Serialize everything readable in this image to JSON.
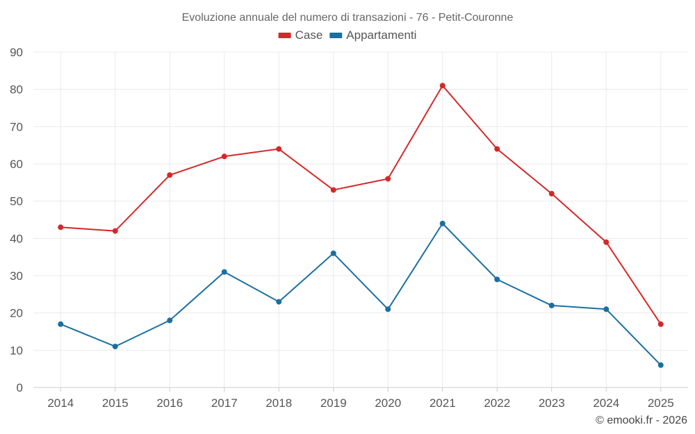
{
  "credit": "© emooki.fr - 2026",
  "colors": {
    "case": "#d62728",
    "appartamenti": "#1a6fa0"
  },
  "chart_data": {
    "type": "line",
    "title": "Evoluzione annuale del numero di transazioni - 76 - Petit-Couronne",
    "xlabel": "",
    "ylabel": "",
    "categories": [
      "2014",
      "2015",
      "2016",
      "2017",
      "2018",
      "2019",
      "2020",
      "2021",
      "2022",
      "2023",
      "2024",
      "2025"
    ],
    "ylim": [
      0,
      90
    ],
    "yticks": [
      0,
      10,
      20,
      30,
      40,
      50,
      60,
      70,
      80,
      90
    ],
    "grid": true,
    "legend_position": "top-center",
    "series": [
      {
        "name": "Case",
        "color": "#d62728",
        "values": [
          43,
          42,
          57,
          62,
          64,
          53,
          56,
          81,
          64,
          52,
          39,
          17
        ]
      },
      {
        "name": "Appartamenti",
        "color": "#1a6fa0",
        "values": [
          17,
          11,
          18,
          31,
          23,
          36,
          21,
          44,
          29,
          22,
          21,
          6
        ]
      }
    ]
  }
}
